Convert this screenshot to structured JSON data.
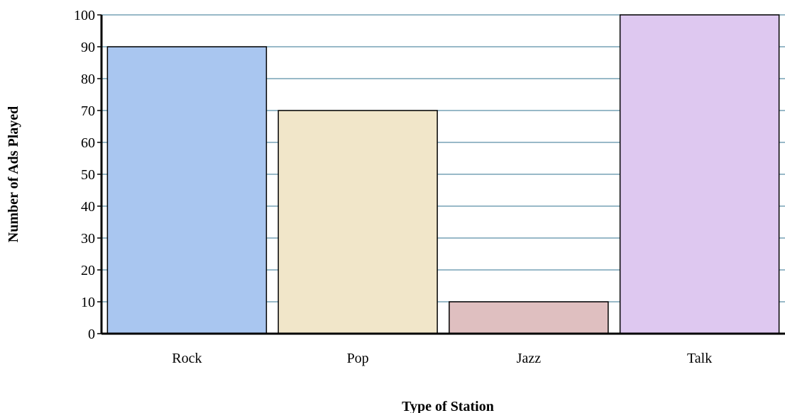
{
  "chart_data": {
    "type": "bar",
    "title": "",
    "xlabel": "Type of Station",
    "ylabel": "Number of Ads Played",
    "categories": [
      "Rock",
      "Pop",
      "Jazz",
      "Talk"
    ],
    "values": [
      90,
      70,
      10,
      100
    ],
    "colors": [
      "#a9c6f0",
      "#f1e6c9",
      "#dfbfc0",
      "#dec8f0"
    ],
    "ylim": [
      0,
      100
    ],
    "yticks": [
      0,
      10,
      20,
      30,
      40,
      50,
      60,
      70,
      80,
      90,
      100
    ],
    "grid": true,
    "gridline_color": "#5b8fa8",
    "legend": "none"
  }
}
